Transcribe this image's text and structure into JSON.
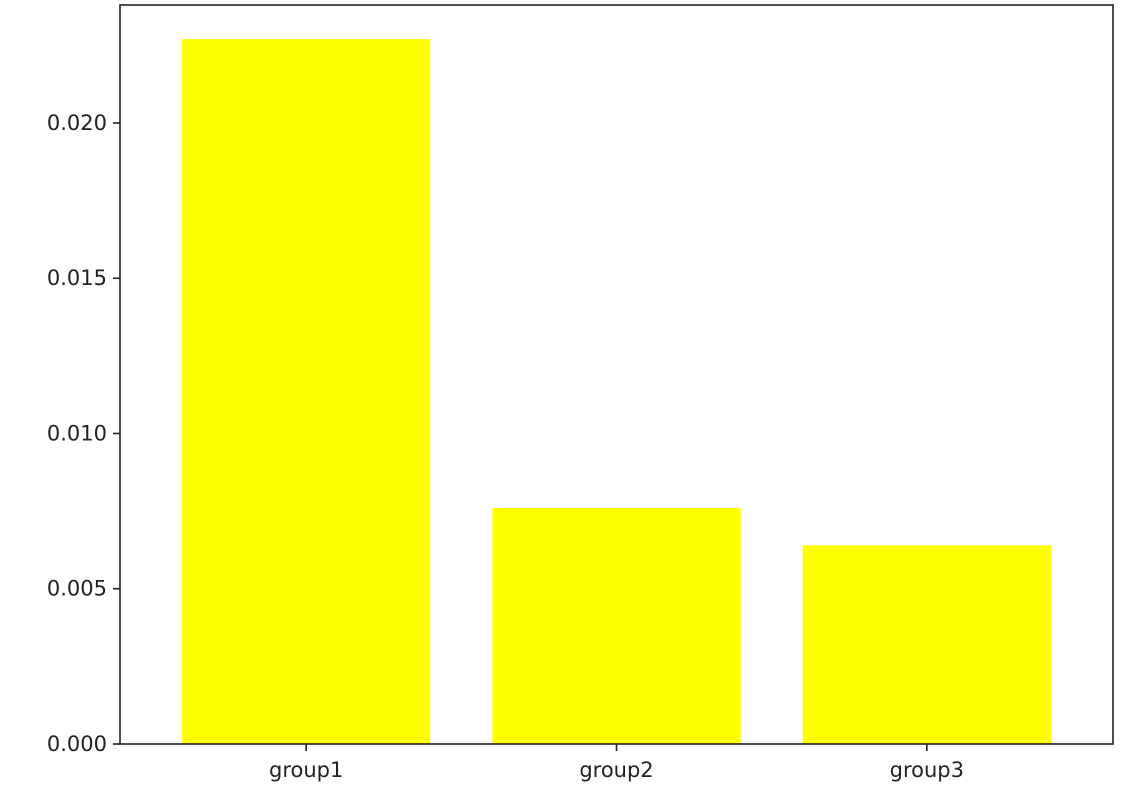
{
  "chart_data": {
    "type": "bar",
    "title": "",
    "xlabel": "",
    "ylabel": "",
    "categories": [
      "group1",
      "group2",
      "group3"
    ],
    "values": [
      0.0227,
      0.0076,
      0.0064
    ],
    "ylim": [
      0,
      0.0238
    ],
    "yticks": [
      0.0,
      0.005,
      0.01,
      0.015,
      0.02
    ],
    "ytick_labels": [
      "0.000",
      "0.005",
      "0.010",
      "0.015",
      "0.020"
    ],
    "bar_color": "#ffff00",
    "grid": false,
    "legend": "none"
  }
}
